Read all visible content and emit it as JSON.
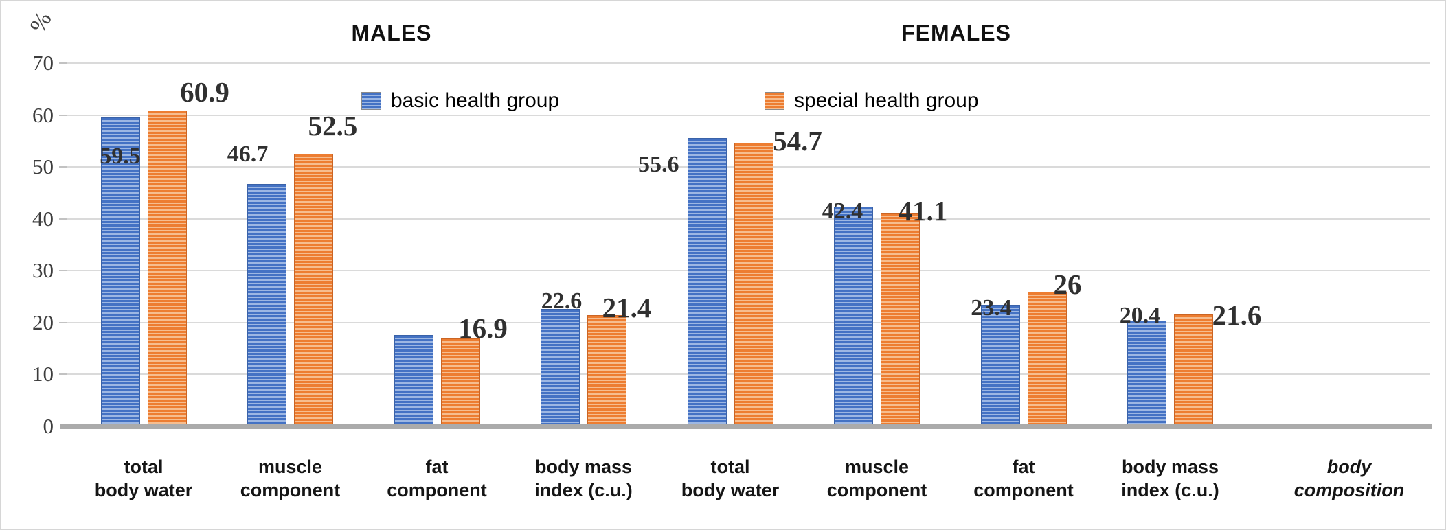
{
  "section_titles": {
    "males": "MALES",
    "females": "FEMALES"
  },
  "y_axis": {
    "unit": "%",
    "ticks": [
      70,
      60,
      50,
      40,
      30,
      20,
      10,
      0
    ],
    "max": 70
  },
  "legend": {
    "basic": {
      "label": "basic health group",
      "color": "#4472C4",
      "stripe": "#9DB7E3"
    },
    "special": {
      "label": "special health group",
      "color": "#ED7D31",
      "stripe": "#F6BD8F"
    }
  },
  "x_axis_title": {
    "line1": "body",
    "line2": "composition"
  },
  "chart_data": {
    "type": "bar",
    "ylabel": "%",
    "ylim": [
      0,
      70
    ],
    "grid": true,
    "legend_position": "top",
    "sections": [
      {
        "name": "MALES",
        "category_indexes": [
          0,
          1,
          2,
          3
        ]
      },
      {
        "name": "FEMALES",
        "category_indexes": [
          4,
          5,
          6,
          7
        ]
      }
    ],
    "categories": [
      "total body water",
      "muscle component",
      "fat component",
      "body mass index (c.u.)",
      "total body water",
      "muscle component",
      "fat component",
      "body mass index (c.u.)"
    ],
    "category_lines": [
      [
        "total",
        "body water"
      ],
      [
        "muscle",
        "component"
      ],
      [
        "fat",
        "component"
      ],
      [
        "body mass",
        "index (c.u.)"
      ],
      [
        "total",
        "body water"
      ],
      [
        "muscle",
        "component"
      ],
      [
        "fat",
        "component"
      ],
      [
        "body mass",
        "index (c.u.)"
      ]
    ],
    "series": [
      {
        "name": "basic health group",
        "values": [
          59.5,
          46.7,
          17.6,
          22.6,
          55.6,
          42.4,
          23.4,
          20.4
        ],
        "labels": [
          "59.5",
          "46.7",
          "",
          "22.6",
          "55.6",
          "42.4",
          "23.4",
          "20.4"
        ]
      },
      {
        "name": "special health group",
        "values": [
          60.9,
          52.5,
          16.9,
          21.4,
          54.7,
          41.1,
          26,
          21.6
        ],
        "labels": [
          "60.9",
          "52.5",
          "16.9",
          "21.4",
          "54.7",
          "41.1",
          "26",
          "21.6"
        ]
      }
    ]
  }
}
